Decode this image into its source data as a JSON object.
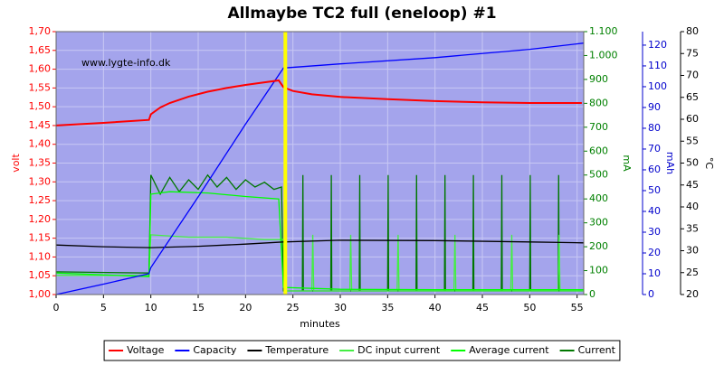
{
  "chart_data": {
    "type": "line",
    "title": "Allmaybe TC2 full (eneloop) #1",
    "watermark": "www.lygte-info.dk",
    "xlabel": "minutes",
    "ylabel": "volt",
    "y2label": "mA",
    "y3label": "mAh",
    "y4label": "°C",
    "xlim": [
      0,
      55.7
    ],
    "xticks": [
      0,
      5,
      10,
      15,
      20,
      25,
      30,
      35,
      40,
      45,
      50,
      55
    ],
    "ylim": [
      1.0,
      1.7
    ],
    "yticks": [
      {
        "value": 1.0,
        "label": "1,00"
      },
      {
        "value": 1.05,
        "label": "1,05"
      },
      {
        "value": 1.1,
        "label": "1,10"
      },
      {
        "value": 1.15,
        "label": "1,15"
      },
      {
        "value": 1.2,
        "label": "1,20"
      },
      {
        "value": 1.25,
        "label": "1,25"
      },
      {
        "value": 1.3,
        "label": "1,30"
      },
      {
        "value": 1.35,
        "label": "1,35"
      },
      {
        "value": 1.4,
        "label": "1,40"
      },
      {
        "value": 1.45,
        "label": "1,45"
      },
      {
        "value": 1.5,
        "label": "1,50"
      },
      {
        "value": 1.55,
        "label": "1,55"
      },
      {
        "value": 1.6,
        "label": "1,60"
      },
      {
        "value": 1.65,
        "label": "1,65"
      },
      {
        "value": 1.7,
        "label": "1,70"
      }
    ],
    "y2lim": [
      0,
      1100
    ],
    "y2ticks": [
      0,
      100,
      200,
      300,
      400,
      500,
      600,
      700,
      800,
      900,
      {
        "value": 1000,
        "label": "1.000"
      },
      {
        "value": 1100,
        "label": "1.100"
      }
    ],
    "y3lim": [
      0,
      126.5
    ],
    "y3ticks": [
      0,
      10,
      20,
      30,
      40,
      50,
      60,
      70,
      80,
      90,
      100,
      110,
      120
    ],
    "y4lim": [
      20,
      80
    ],
    "y4ticks": [
      20,
      25,
      30,
      35,
      40,
      45,
      50,
      55,
      60,
      65,
      70,
      75,
      80
    ],
    "grid": true,
    "background": "#a4a4ec",
    "marker_line": {
      "x": 24.2,
      "color": "#ffff00"
    },
    "series": [
      {
        "name": "Voltage",
        "color": "#ff0000",
        "axis": "y",
        "x": [
          0,
          5,
          9.8,
          10,
          11,
          12,
          14,
          16,
          18,
          20,
          22,
          23.5,
          24,
          25,
          27,
          30,
          35,
          40,
          45,
          50,
          55.5
        ],
        "values": [
          1.45,
          1.457,
          1.465,
          1.48,
          1.498,
          1.51,
          1.527,
          1.54,
          1.55,
          1.558,
          1.565,
          1.57,
          1.552,
          1.542,
          1.533,
          1.526,
          1.52,
          1.515,
          1.512,
          1.51,
          1.51
        ]
      },
      {
        "name": "Capacity",
        "color": "#0000ff",
        "axis": "y3",
        "x": [
          0,
          5,
          9.8,
          10,
          15,
          20,
          24,
          30,
          40,
          50,
          55.7
        ],
        "values": [
          0,
          5,
          10,
          13,
          47,
          82,
          109,
          111,
          114,
          118,
          121
        ]
      },
      {
        "name": "Temperature",
        "color": "#000000",
        "axis": "y4",
        "x": [
          0,
          5,
          10,
          15,
          20,
          24,
          30,
          40,
          50,
          55.7
        ],
        "values": [
          31.3,
          30.9,
          30.7,
          31.0,
          31.5,
          32.0,
          32.4,
          32.3,
          32.0,
          31.8
        ]
      },
      {
        "name": "DC input current",
        "color": "#44ee44",
        "axis": "y2",
        "x": [
          0,
          9.8,
          10,
          14,
          18,
          22,
          24,
          24.2,
          27,
          27.1,
          27.2,
          31,
          31.1,
          31.2,
          36,
          36.1,
          36.2,
          42,
          42.1,
          42.2,
          48,
          48.1,
          48.2,
          53,
          53.1,
          53.2,
          55.7
        ],
        "values": [
          80,
          80,
          250,
          240,
          240,
          230,
          230,
          15,
          15,
          250,
          15,
          15,
          250,
          15,
          15,
          250,
          15,
          15,
          250,
          15,
          15,
          250,
          15,
          15,
          250,
          15,
          15
        ]
      },
      {
        "name": "Average current",
        "color": "#00ff00",
        "axis": "y2",
        "x": [
          0,
          9.8,
          10,
          12,
          16,
          20,
          23.5,
          24,
          30,
          40,
          55.7
        ],
        "values": [
          90,
          75,
          420,
          430,
          425,
          410,
          400,
          30,
          22,
          20,
          20
        ]
      },
      {
        "name": "Current",
        "color": "#007700",
        "axis": "y2",
        "x": [
          0,
          9.8,
          10,
          11,
          12,
          13,
          14,
          15,
          16,
          17,
          18,
          19,
          20,
          21,
          22,
          23,
          23.8,
          24,
          26,
          26.05,
          26.1,
          29,
          29.05,
          29.1,
          32,
          32.05,
          32.1,
          35,
          35.05,
          35.1,
          38,
          38.05,
          38.1,
          41,
          41.05,
          41.1,
          44,
          44.05,
          44.1,
          47,
          47.05,
          47.1,
          50,
          50.05,
          50.1,
          53,
          53.05,
          53.1,
          55.7
        ],
        "values": [
          95,
          90,
          500,
          420,
          490,
          430,
          480,
          440,
          500,
          450,
          490,
          440,
          480,
          450,
          470,
          440,
          450,
          15,
          15,
          500,
          15,
          15,
          500,
          15,
          15,
          500,
          15,
          15,
          500,
          15,
          15,
          500,
          15,
          15,
          500,
          15,
          15,
          500,
          15,
          15,
          500,
          15,
          15,
          500,
          15,
          15,
          500,
          15,
          15
        ]
      }
    ]
  }
}
